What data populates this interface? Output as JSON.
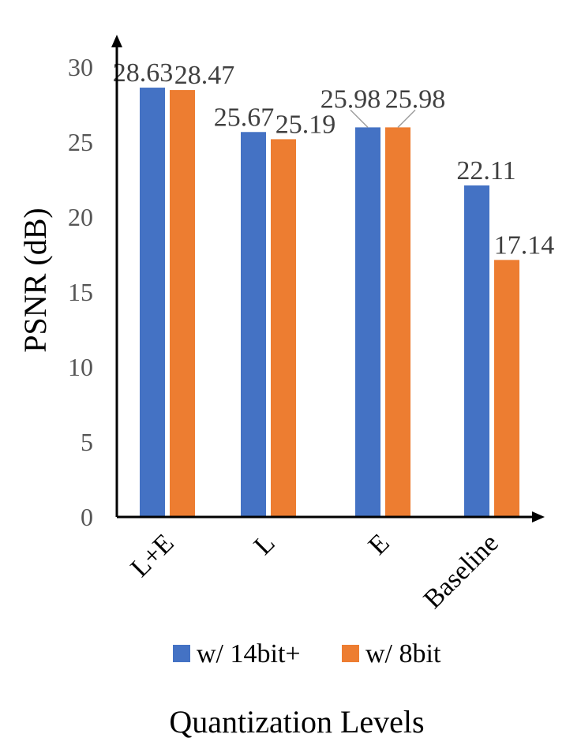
{
  "chart_data": {
    "type": "bar",
    "categories": [
      "L+E",
      "L",
      "E",
      "Baseline"
    ],
    "series": [
      {
        "name": "w/ 14bit+",
        "values": [
          28.63,
          25.67,
          25.98,
          22.11
        ],
        "labels": [
          "28.63",
          "25.67",
          "25.98",
          "22.11"
        ],
        "color": "#4472C4"
      },
      {
        "name": "w/ 8bit",
        "values": [
          28.47,
          25.19,
          25.98,
          17.14
        ],
        "labels": [
          "28.47",
          "25.19",
          "25.98",
          "17.14"
        ],
        "color": "#ED7D31"
      }
    ],
    "title": "",
    "xlabel": "Quantization Levels",
    "ylabel": "PSNR (dB)",
    "ylim": [
      0,
      30
    ],
    "yticks": [
      0,
      5,
      10,
      15,
      20,
      25,
      30
    ],
    "grid": false,
    "legend": "bottom"
  }
}
